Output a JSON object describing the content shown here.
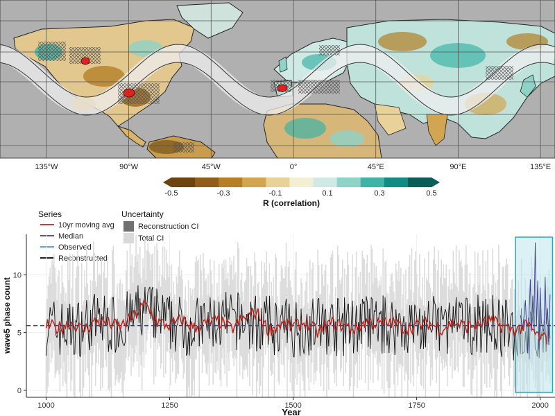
{
  "chart_data": [
    {
      "type": "heatmap",
      "map_kind": "world correlation map",
      "xlabel": "",
      "ylabel": "",
      "x_tick_labels": [
        "135°W",
        "90°W",
        "45°W",
        "0°",
        "45°E",
        "90°E",
        "135°E"
      ],
      "x_tick_values": [
        -135,
        -90,
        -45,
        0,
        45,
        90,
        135
      ],
      "colorbar": {
        "label": "R (correlation)",
        "tick_labels": [
          "-0.5",
          "-0.3",
          "-0.1",
          "0.1",
          "0.3",
          "0.5"
        ],
        "range": [
          -0.5,
          0.5
        ],
        "bins": [
          -0.5,
          -0.4,
          -0.3,
          -0.2,
          -0.1,
          0,
          0.1,
          0.2,
          0.3,
          0.4,
          0.5
        ],
        "colors": [
          "#6b4410",
          "#8f5e1a",
          "#b47f27",
          "#d2a550",
          "#e8d29a",
          "#f4eed2",
          "#cfe9e4",
          "#8fd2c8",
          "#3fb3a6",
          "#128c83",
          "#0b5e58"
        ]
      },
      "ocean_color": "#b0b0b0",
      "overlay": "wave-5 phase band with hatched significant regions"
    },
    {
      "type": "line",
      "xlabel": "Year",
      "ylabel": "wave5 phase count",
      "xlim": [
        960,
        2030
      ],
      "ylim": [
        -0.6,
        13.5
      ],
      "x_ticks": [
        1000,
        1250,
        1500,
        1750,
        2000
      ],
      "y_ticks": [
        0,
        5,
        10
      ],
      "median_value": 5.6,
      "highlight_box": {
        "x_start": 1950,
        "x_end": 2025
      },
      "legend": {
        "series_title": "Series",
        "series": [
          {
            "name": "10yr moving avg",
            "color": "#b3261e"
          },
          {
            "name": "Median",
            "color": "#3b3b8f"
          },
          {
            "name": "Observed",
            "color": "#2ba3c7"
          },
          {
            "name": "Reconstructed",
            "color": "#000000"
          }
        ],
        "uncertainty_title": "Uncertainty",
        "uncertainty": [
          {
            "name": "Reconstruction CI",
            "color": "#707070"
          },
          {
            "name": "Total CI",
            "color": "#d9d9d9"
          }
        ]
      },
      "series": [
        {
          "name": "10yr moving avg",
          "x": [
            1000,
            1025,
            1050,
            1075,
            1100,
            1125,
            1150,
            1175,
            1200,
            1225,
            1250,
            1275,
            1300,
            1325,
            1350,
            1375,
            1400,
            1425,
            1450,
            1475,
            1500,
            1525,
            1550,
            1575,
            1600,
            1625,
            1650,
            1675,
            1700,
            1725,
            1750,
            1775,
            1800,
            1825,
            1850,
            1875,
            1900,
            1925,
            1950,
            1975,
            2000
          ],
          "values": [
            5.6,
            5.4,
            5.9,
            5.2,
            6.0,
            5.8,
            5.5,
            6.3,
            7.5,
            5.9,
            5.6,
            6.1,
            5.4,
            5.8,
            6.0,
            5.3,
            6.2,
            6.8,
            5.2,
            5.7,
            5.5,
            5.9,
            5.0,
            5.8,
            5.6,
            5.3,
            6.0,
            5.7,
            5.9,
            5.4,
            5.6,
            5.8,
            5.3,
            5.9,
            5.5,
            5.7,
            6.0,
            5.5,
            5.2,
            5.6,
            4.5
          ]
        },
        {
          "name": "Median",
          "x": [
            1000,
            2025
          ],
          "values": [
            5.6,
            5.6
          ]
        },
        {
          "name": "Observed",
          "x": [
            1960,
            1970,
            1980,
            1985,
            1990,
            1995,
            2000,
            2005,
            2010,
            2015,
            2020
          ],
          "values": [
            6.5,
            7.8,
            9.6,
            8.2,
            12.8,
            9.5,
            8.9,
            5.4,
            9.8,
            7.1,
            8.3
          ]
        },
        {
          "name": "Reconstructed",
          "x": [
            1000,
            1050,
            1100,
            1150,
            1200,
            1250,
            1300,
            1350,
            1400,
            1450,
            1500,
            1550,
            1600,
            1650,
            1700,
            1750,
            1800,
            1850,
            1900,
            1950,
            2000
          ],
          "values": [
            5.6,
            5.2,
            6.0,
            5.6,
            7.0,
            5.8,
            5.5,
            5.9,
            6.0,
            5.6,
            5.4,
            5.7,
            5.5,
            5.8,
            5.6,
            5.5,
            5.7,
            5.6,
            5.8,
            5.0,
            4.5
          ]
        }
      ]
    }
  ]
}
